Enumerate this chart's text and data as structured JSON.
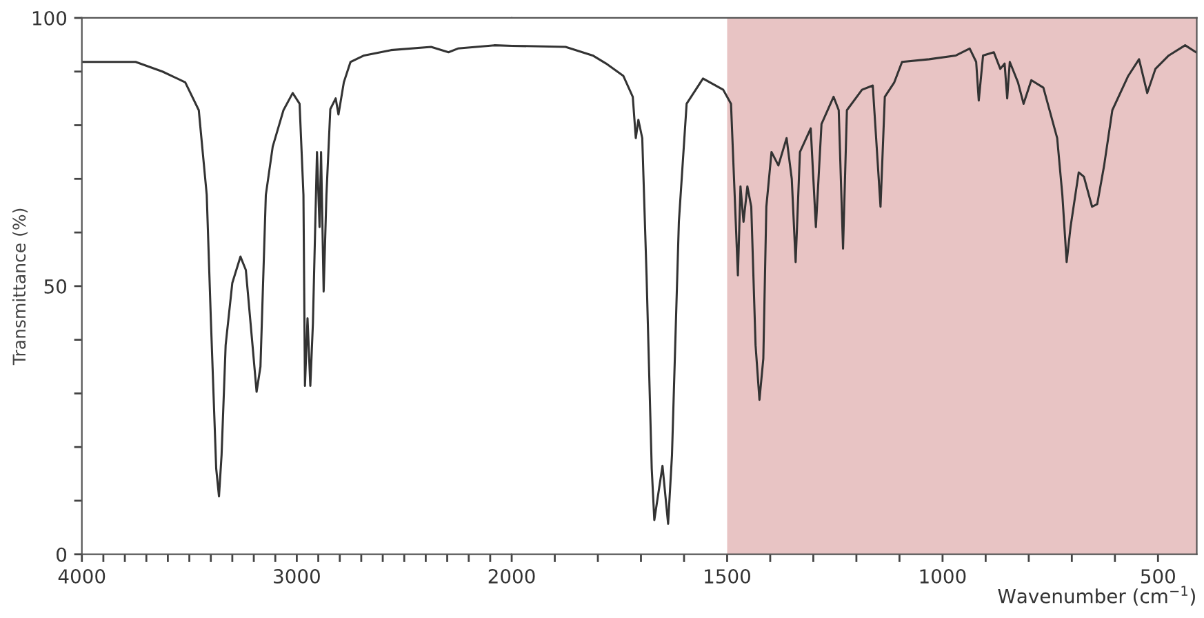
{
  "chart_data": [
    {
      "type": "line",
      "ylabel": "Transmittance (%)",
      "x": [
        4000,
        3750,
        3625,
        3519,
        3456,
        3419,
        3400,
        3375,
        3362,
        3350,
        3331,
        3300,
        3262,
        3237,
        3206,
        3187,
        3169,
        3144,
        3112,
        3062,
        3019,
        2987,
        2969,
        2962,
        2950,
        2937,
        2925,
        2906,
        2894,
        2887,
        2875,
        2862,
        2844,
        2819,
        2806,
        2781,
        2750,
        2687,
        2562,
        2375,
        2294,
        2250,
        2081,
        2000
      ],
      "series": [
        {
          "color": "#333333",
          "values": [
            91.8,
            91.8,
            90,
            88,
            82.8,
            67,
            44,
            16,
            10.8,
            18.5,
            39,
            50.6,
            55.5,
            53,
            39,
            30.3,
            35,
            67,
            76,
            82.8,
            86,
            84,
            67,
            31.4,
            44,
            31.4,
            43,
            75,
            61,
            75,
            49,
            67,
            83,
            85,
            82,
            88,
            91.8,
            93,
            94,
            94.6,
            93.6,
            94.3,
            94.9,
            94.8
          ]
        }
      ],
      "xlim": [
        4000,
        2000
      ],
      "ylim": [
        0,
        100
      ],
      "xticks": [
        4000,
        {
          "value": 3900,
          "label": null
        },
        {
          "value": 3800,
          "label": null
        },
        {
          "value": 3700,
          "label": null
        },
        {
          "value": 3600,
          "label": null
        },
        {
          "value": 3500,
          "label": null
        },
        {
          "value": 3400,
          "label": null
        },
        {
          "value": 3300,
          "label": null
        },
        {
          "value": 3200,
          "label": null
        },
        {
          "value": 3100,
          "label": null
        },
        3000,
        {
          "value": 2900,
          "label": null
        },
        {
          "value": 2800,
          "label": null
        },
        {
          "value": 2700,
          "label": null
        },
        {
          "value": 2600,
          "label": null
        },
        {
          "value": 2500,
          "label": null
        },
        {
          "value": 2400,
          "label": null
        },
        {
          "value": 2300,
          "label": null
        },
        {
          "value": 2200,
          "label": null
        },
        {
          "value": 2100,
          "label": null
        },
        2000
      ],
      "yticks": [
        0,
        {
          "value": 10,
          "label": null
        },
        {
          "value": 20,
          "label": null
        },
        {
          "value": 30,
          "label": null
        },
        {
          "value": 40,
          "label": null
        },
        50,
        {
          "value": 60,
          "label": null
        },
        {
          "value": 70,
          "label": null
        },
        {
          "value": 80,
          "label": null
        },
        {
          "value": 90,
          "label": null
        },
        100
      ],
      "grid": false,
      "legend": false,
      "marker": "none",
      "line_style": "solid"
    },
    {
      "type": "line",
      "xlabel": "Wavenumber (cm$^{−1}$)",
      "x": [
        2000,
        1875,
        1812,
        1781,
        1741,
        1719,
        1712,
        1706,
        1697,
        1687,
        1675,
        1669,
        1650,
        1637,
        1628,
        1612,
        1594,
        1556,
        1509,
        1491,
        1475,
        1469,
        1462,
        1453,
        1444,
        1434,
        1425,
        1416,
        1409,
        1397,
        1381,
        1362,
        1350,
        1341,
        1331,
        1306,
        1294,
        1281,
        1253,
        1241,
        1231,
        1222,
        1187,
        1162,
        1144,
        1134,
        1112,
        1094,
        1031,
        969,
        937,
        922,
        916,
        906,
        881,
        866,
        856,
        850,
        844,
        825,
        812,
        794,
        766,
        734,
        722,
        712,
        703,
        684,
        672,
        653,
        641,
        625,
        606,
        569,
        544,
        525,
        506,
        475,
        437,
        412
      ],
      "series": [
        {
          "color": "#333333",
          "values": [
            94.8,
            94.6,
            93,
            91.5,
            89.2,
            85.3,
            77.6,
            81,
            77.6,
            52,
            16,
            6.4,
            16.5,
            5.7,
            18.5,
            62,
            84,
            88.7,
            86.6,
            84,
            52,
            68.6,
            62,
            68.6,
            64.8,
            39,
            28.8,
            36.5,
            64.8,
            75,
            72.5,
            77.6,
            70,
            54.5,
            75,
            79.4,
            61,
            80.2,
            85.3,
            82.8,
            57,
            82.8,
            86.6,
            87.4,
            64.8,
            85.3,
            88,
            91.8,
            92.3,
            93,
            94.3,
            91.8,
            84.6,
            93,
            93.6,
            90.5,
            91.5,
            85,
            91.8,
            88,
            84,
            88.4,
            87,
            77.6,
            67,
            54.5,
            61,
            71.2,
            70.4,
            64.8,
            65.3,
            72.5,
            82.8,
            89.2,
            92.3,
            86,
            90.5,
            93,
            94.9,
            93.6
          ]
        }
      ],
      "xlim": [
        2000,
        410
      ],
      "ylim": [
        0,
        100
      ],
      "xticks": [
        {
          "value": 1900,
          "label": null
        },
        {
          "value": 1800,
          "label": null
        },
        {
          "value": 1700,
          "label": null
        },
        {
          "value": 1600,
          "label": null
        },
        1500,
        {
          "value": 1400,
          "label": null
        },
        {
          "value": 1300,
          "label": null
        },
        {
          "value": 1200,
          "label": null
        },
        {
          "value": 1100,
          "label": null
        },
        1000,
        {
          "value": 900,
          "label": null
        },
        {
          "value": 800,
          "label": null
        },
        {
          "value": 700,
          "label": null
        },
        {
          "value": 600,
          "label": null
        },
        500
      ],
      "tick_labels": "x",
      "bands": [
        {
          "axis": "x",
          "from": 1500,
          "to": 410,
          "color": "#e8c4c4"
        }
      ],
      "grid": false,
      "legend": false,
      "marker": "none",
      "line_style": "solid"
    }
  ]
}
